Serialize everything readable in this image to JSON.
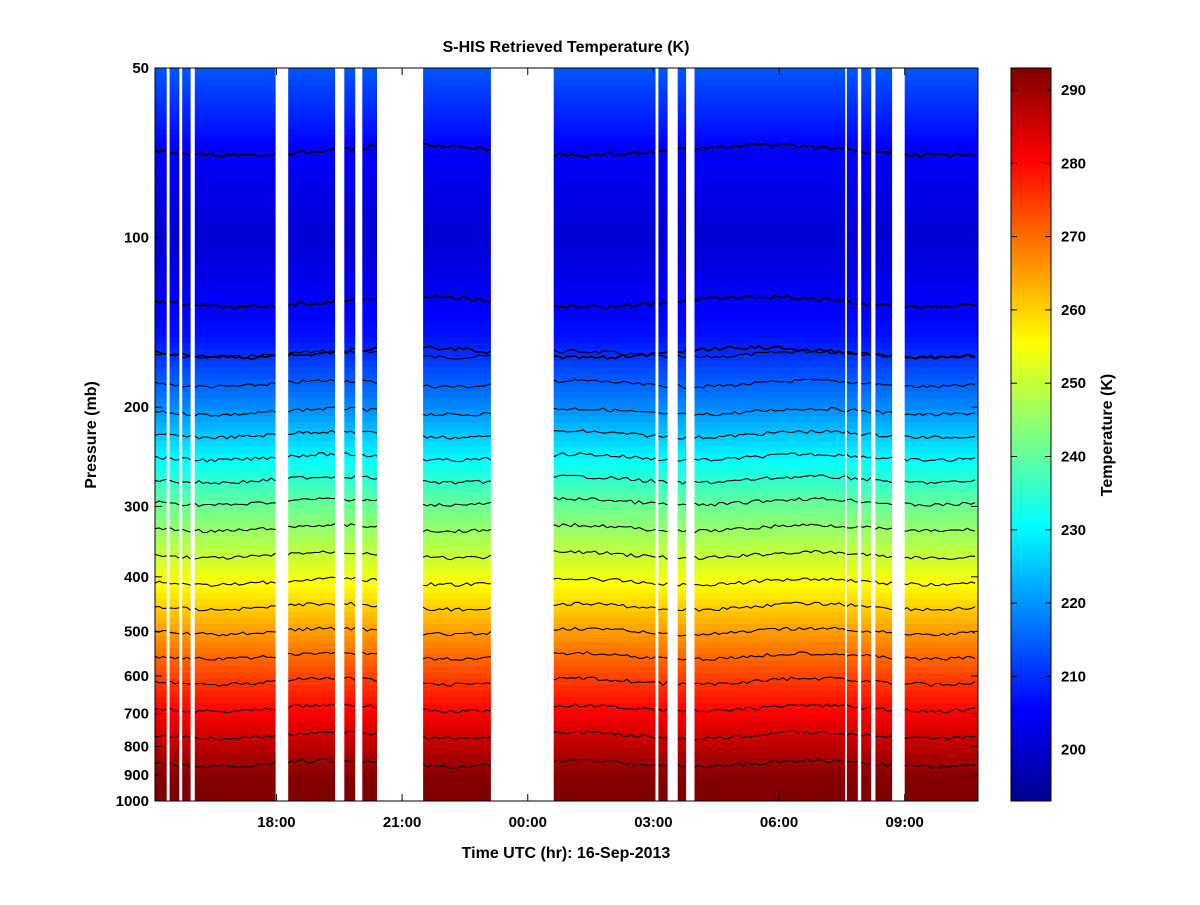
{
  "chart_data": {
    "type": "heatmap",
    "title": "S-HIS Retrieved Temperature (K)",
    "xlabel": "Time UTC (hr): 16-Sep-2013",
    "ylabel": "Pressure (mb)",
    "x_unit": "hours since 00:00 UTC 16-Sep-2013",
    "xlim": [
      -8.9,
      10.75
    ],
    "x_ticks": [
      {
        "value": -6,
        "label": "18:00"
      },
      {
        "value": -3,
        "label": "21:00"
      },
      {
        "value": 0,
        "label": "00:00"
      },
      {
        "value": 3,
        "label": "03:00"
      },
      {
        "value": 6,
        "label": "06:00"
      },
      {
        "value": 9,
        "label": "09:00"
      }
    ],
    "y_scale": "log",
    "ylim": [
      50,
      1000
    ],
    "y_ticks": [
      50,
      100,
      200,
      300,
      400,
      500,
      600,
      700,
      800,
      900,
      1000
    ],
    "colorbar": {
      "label": "Temperature (K)",
      "range": [
        193,
        293
      ],
      "colormap": "jet",
      "ticks": [
        200,
        210,
        220,
        230,
        240,
        250,
        260,
        270,
        280,
        290
      ]
    },
    "data_gaps_hours": [
      [
        -8.62,
        -8.55
      ],
      [
        -8.32,
        -8.25
      ],
      [
        -8.05,
        -7.95
      ],
      [
        -6.02,
        -5.72
      ],
      [
        -4.6,
        -4.38
      ],
      [
        -4.12,
        -3.95
      ],
      [
        -3.6,
        -2.5
      ],
      [
        -0.88,
        0.62
      ],
      [
        3.05,
        3.12
      ],
      [
        3.34,
        3.58
      ],
      [
        3.78,
        3.98
      ],
      [
        7.58,
        7.62
      ],
      [
        7.88,
        7.96
      ],
      [
        8.2,
        8.3
      ],
      [
        8.7,
        9.0
      ]
    ],
    "temperature_profile": [
      {
        "pressure_mb": 50,
        "temp_k": 214
      },
      {
        "pressure_mb": 70,
        "temp_k": 205
      },
      {
        "pressure_mb": 100,
        "temp_k": 201
      },
      {
        "pressure_mb": 150,
        "temp_k": 207
      },
      {
        "pressure_mb": 200,
        "temp_k": 219
      },
      {
        "pressure_mb": 250,
        "temp_k": 231
      },
      {
        "pressure_mb": 300,
        "temp_k": 241
      },
      {
        "pressure_mb": 400,
        "temp_k": 254
      },
      {
        "pressure_mb": 500,
        "temp_k": 265
      },
      {
        "pressure_mb": 600,
        "temp_k": 274
      },
      {
        "pressure_mb": 700,
        "temp_k": 281
      },
      {
        "pressure_mb": 800,
        "temp_k": 287
      },
      {
        "pressure_mb": 900,
        "temp_k": 292
      },
      {
        "pressure_mb": 1000,
        "temp_k": 295
      }
    ],
    "contour_interval_k": 5
  }
}
